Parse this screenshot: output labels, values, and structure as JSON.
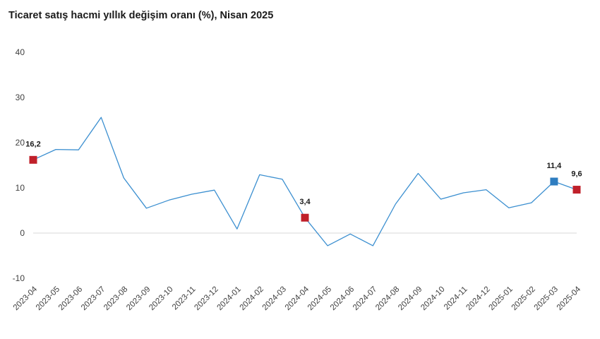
{
  "chart_data": {
    "type": "line",
    "title": "Ticaret satış hacmi yıllık değişim oranı (%), Nisan 2025",
    "xlabel": "",
    "ylabel": "",
    "ylim": [
      -10,
      40
    ],
    "yticks": [
      -10,
      0,
      10,
      20,
      30,
      40
    ],
    "grid": false,
    "x": [
      "2023-04",
      "2023-05",
      "2023-06",
      "2023-07",
      "2023-08",
      "2023-09",
      "2023-10",
      "2023-11",
      "2023-12",
      "2024-01",
      "2024-02",
      "2024-03",
      "2024-04",
      "2024-05",
      "2024-06",
      "2024-07",
      "2024-08",
      "2024-09",
      "2024-10",
      "2024-11",
      "2024-12",
      "2025-01",
      "2025-02",
      "2025-03",
      "2025-04"
    ],
    "series": [
      {
        "name": "",
        "color": "#3b8fd0",
        "values": [
          16.2,
          18.5,
          18.4,
          25.6,
          12.2,
          5.5,
          7.3,
          8.6,
          9.5,
          0.9,
          12.9,
          11.9,
          3.4,
          -2.8,
          -0.2,
          -2.8,
          6.4,
          13.2,
          7.5,
          8.9,
          9.6,
          5.6,
          6.7,
          11.4,
          9.6
        ]
      }
    ],
    "markers": [
      {
        "x": "2023-04",
        "value": 16.2,
        "label": "16,2",
        "color": "#c0202a"
      },
      {
        "x": "2024-04",
        "value": 3.4,
        "label": "3,4",
        "color": "#c0202a"
      },
      {
        "x": "2025-03",
        "value": 11.4,
        "label": "11,4",
        "color": "#2e7dc0"
      },
      {
        "x": "2025-04",
        "value": 9.6,
        "label": "9,6",
        "color": "#c0202a"
      }
    ],
    "axis_color": "#d9d9d9"
  }
}
